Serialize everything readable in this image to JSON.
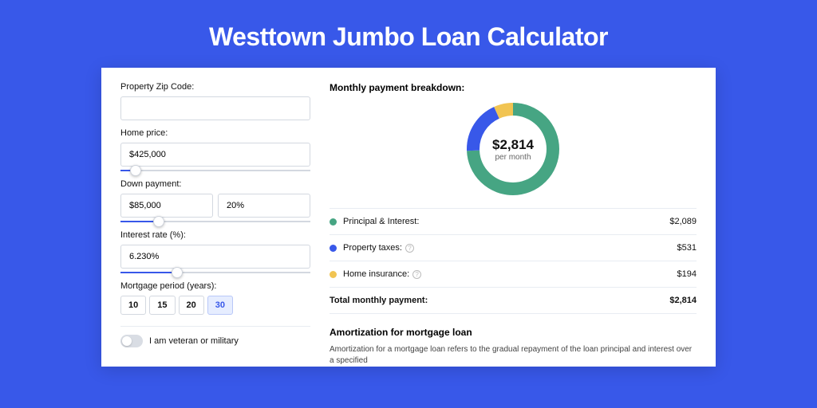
{
  "page": {
    "title": "Westtown Jumbo Loan Calculator"
  },
  "colors": {
    "page_bg": "#3858e9",
    "card_bg": "#ffffff",
    "text": "#111111",
    "muted": "#666666",
    "border": "#d3d8e0",
    "slider_fill": "#3858e9",
    "period_selected_bg": "#e6edff",
    "period_selected_border": "#b9c8f8",
    "period_selected_text": "#3858e9"
  },
  "form": {
    "zip": {
      "label": "Property Zip Code:",
      "value": ""
    },
    "home_price": {
      "label": "Home price:",
      "value": "$425,000",
      "slider_pct": 8
    },
    "down_payment": {
      "label": "Down payment:",
      "value": "$85,000",
      "pct": "20%",
      "slider_pct": 20
    },
    "interest": {
      "label": "Interest rate (%):",
      "value": "6.230%",
      "slider_pct": 30
    },
    "period": {
      "label": "Mortgage period (years):",
      "options": [
        "10",
        "15",
        "20",
        "30"
      ],
      "selected": "30"
    },
    "veteran": {
      "label": "I am veteran or military",
      "on": false
    }
  },
  "chart": {
    "type": "donut",
    "title": "Monthly payment breakdown:",
    "center_amount": "$2,814",
    "center_sub": "per month",
    "stroke_width": 16,
    "radius": 50,
    "slices": [
      {
        "key": "principal_interest",
        "value": 2089,
        "color": "#46a583"
      },
      {
        "key": "property_taxes",
        "value": 531,
        "color": "#3858e9"
      },
      {
        "key": "home_insurance",
        "value": 194,
        "color": "#f1c452"
      }
    ]
  },
  "breakdown": {
    "items": [
      {
        "label": "Principal & Interest:",
        "value": "$2,089",
        "color": "#46a583",
        "info": false
      },
      {
        "label": "Property taxes:",
        "value": "$531",
        "color": "#3858e9",
        "info": true
      },
      {
        "label": "Home insurance:",
        "value": "$194",
        "color": "#f1c452",
        "info": true
      }
    ],
    "total": {
      "label": "Total monthly payment:",
      "value": "$2,814"
    }
  },
  "amortization": {
    "title": "Amortization for mortgage loan",
    "text": "Amortization for a mortgage loan refers to the gradual repayment of the loan principal and interest over a specified"
  }
}
